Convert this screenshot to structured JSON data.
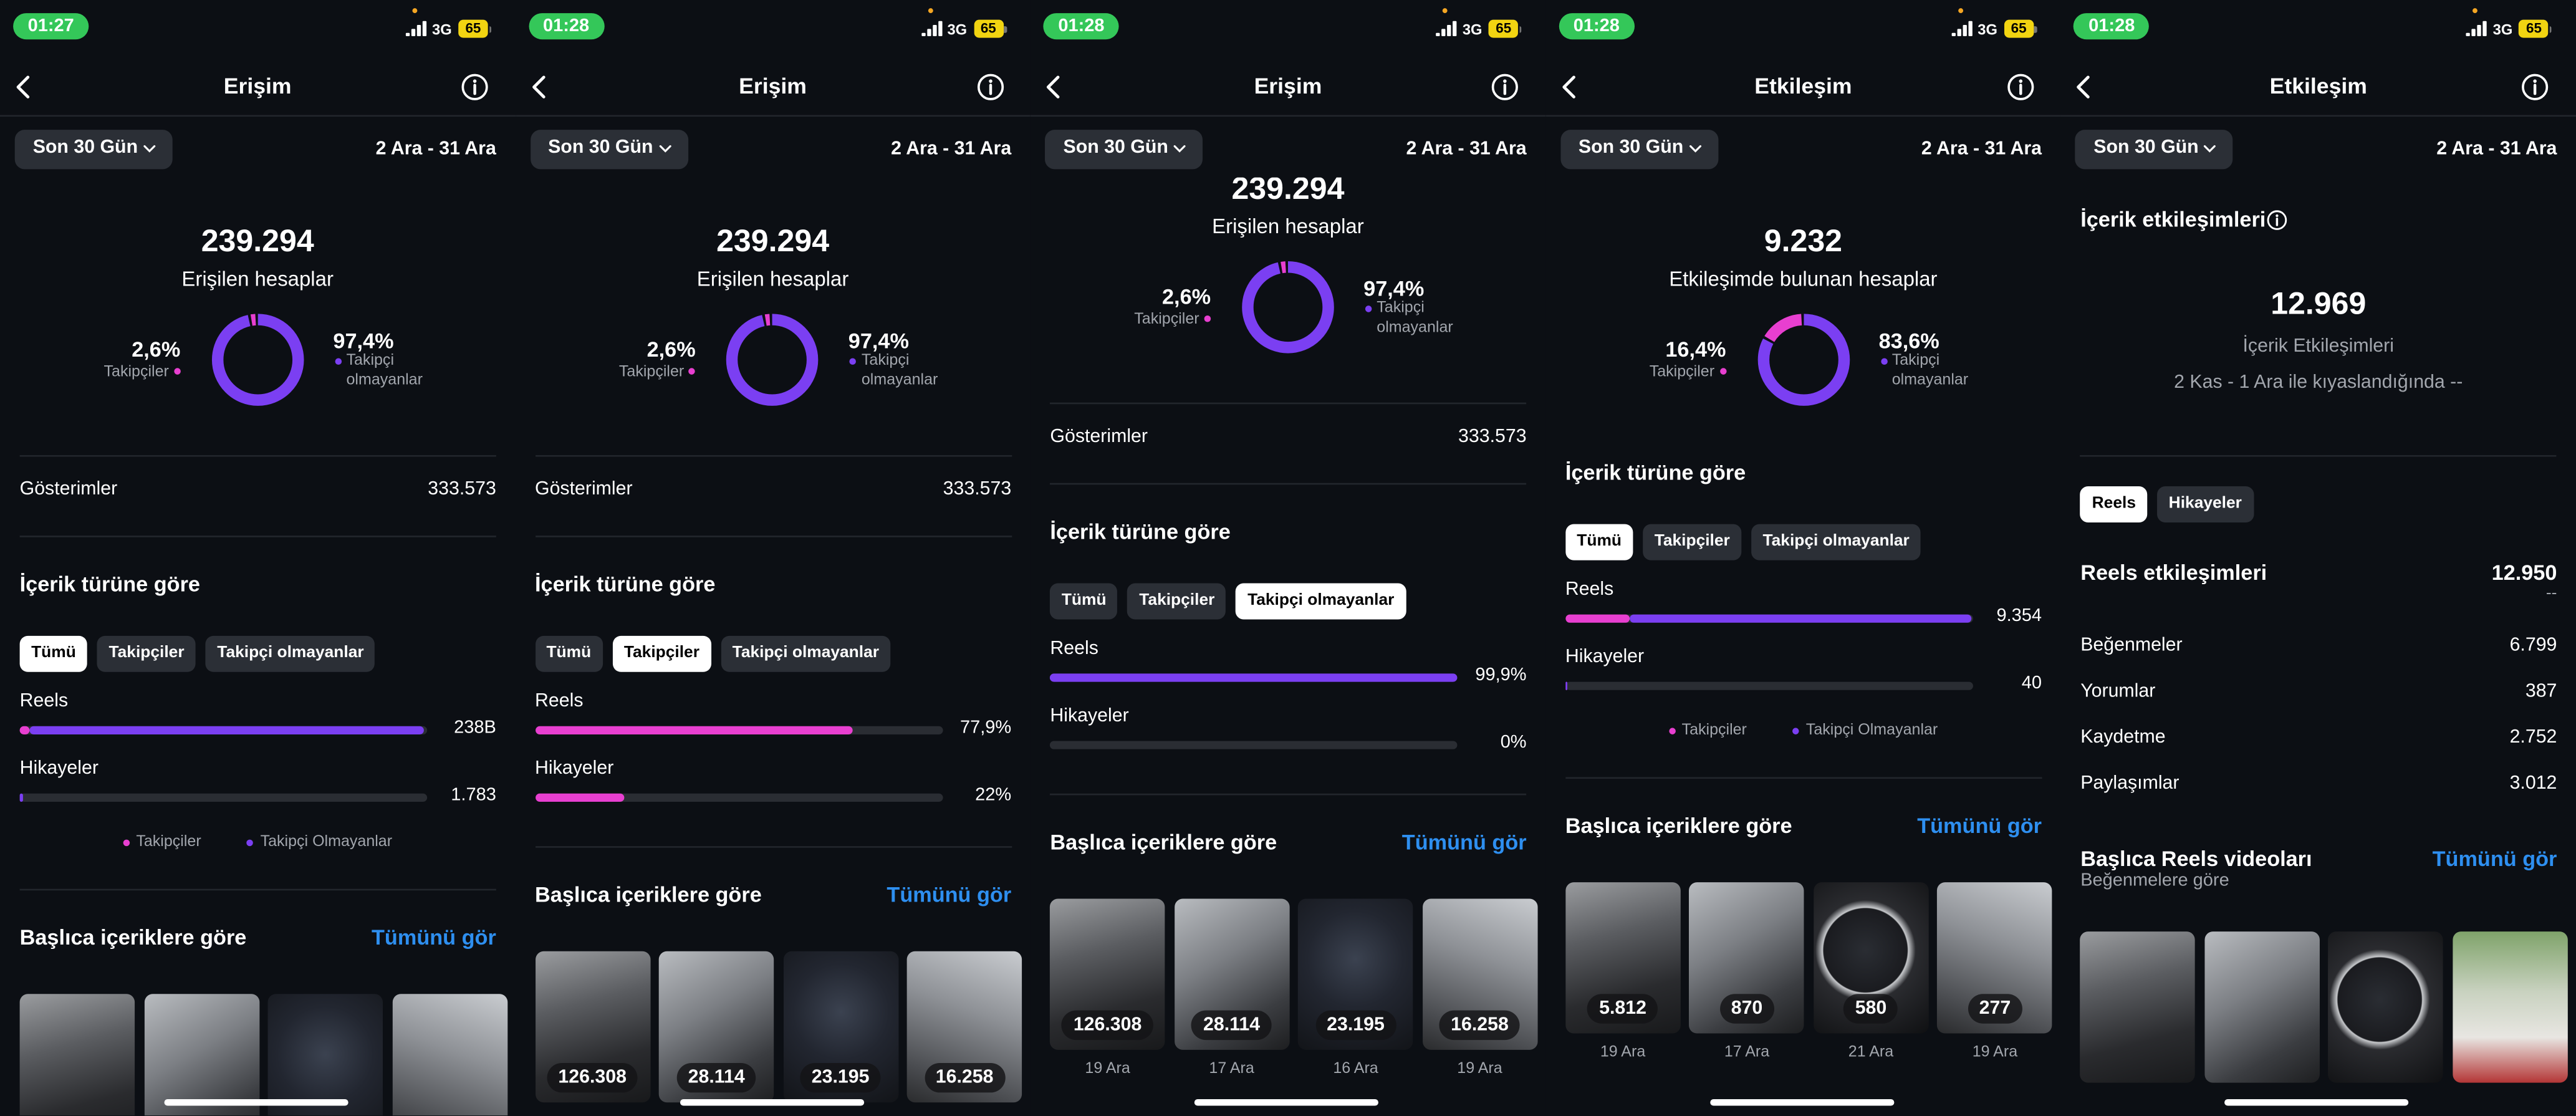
{
  "screens": [
    {
      "status": {
        "time": "01:27",
        "network": "3G",
        "battery": "65"
      },
      "header": {
        "title": "Erişim"
      },
      "filter": {
        "period": "Son 30 Gün",
        "range": "2 Ara - 31 Ara"
      },
      "blocks": [
        {
          "kind": "summary",
          "total": "239.294",
          "label": "Erişilen hesaplar",
          "donut": {
            "values": [
              2.6,
              97.4
            ],
            "value_labels": [
              "2,6%",
              "97,4%"
            ],
            "names": [
              "Takipçiler",
              "Takipçi olmayanlar"
            ],
            "colors": [
              "#e83fd0",
              "#7b3ff2"
            ]
          }
        },
        {
          "kind": "row",
          "label": "Gösterimler",
          "value": "333.573"
        },
        {
          "kind": "heading",
          "text": "İçerik türüne göre"
        },
        {
          "kind": "chips",
          "items": [
            "Tümü",
            "Takipçiler",
            "Takipçi olmayanlar"
          ],
          "selected": 0
        },
        {
          "kind": "bars",
          "categories": [
            "Reels",
            "Hikayeler"
          ],
          "series": [
            {
              "name": "Takipçiler",
              "color": "#e83fd0",
              "values": [
                6200,
                60
              ]
            },
            {
              "name": "Takipçi Olmayanlar",
              "color": "#7b3ff2",
              "values": [
                231800,
                1723
              ]
            }
          ],
          "value_labels": [
            "238B",
            "1.783"
          ],
          "xlim": [
            0,
            240000
          ]
        },
        {
          "kind": "heading",
          "text": "Başlıca içeriklere göre",
          "link": "Tümünü gör"
        },
        {
          "kind": "thumbs",
          "items": [
            {},
            {},
            {},
            {}
          ]
        }
      ]
    },
    {
      "status": {
        "time": "01:28",
        "network": "3G",
        "battery": "65"
      },
      "header": {
        "title": "Erişim"
      },
      "filter": {
        "period": "Son 30 Gün",
        "range": "2 Ara - 31 Ara"
      },
      "blocks": [
        {
          "kind": "summary",
          "total": "239.294",
          "label": "Erişilen hesaplar",
          "donut": {
            "values": [
              2.6,
              97.4
            ],
            "value_labels": [
              "2,6%",
              "97,4%"
            ],
            "names": [
              "Takipçiler",
              "Takipçi olmayanlar"
            ],
            "colors": [
              "#e83fd0",
              "#7b3ff2"
            ]
          }
        },
        {
          "kind": "row",
          "label": "Gösterimler",
          "value": "333.573"
        },
        {
          "kind": "heading",
          "text": "İçerik türüne göre"
        },
        {
          "kind": "chips",
          "items": [
            "Tümü",
            "Takipçiler",
            "Takipçi olmayanlar"
          ],
          "selected": 1
        },
        {
          "kind": "bars",
          "categories": [
            "Reels",
            "Hikayeler"
          ],
          "series": [
            {
              "color": "#e83fd0",
              "values": [
                77.9,
                22
              ]
            }
          ],
          "value_labels": [
            "77,9%",
            "22%"
          ],
          "xlim": [
            0,
            100
          ]
        },
        {
          "kind": "heading",
          "text": "Başlıca içeriklere göre",
          "link": "Tümünü gör"
        },
        {
          "kind": "thumbs",
          "items": [
            {
              "badge": "126.308"
            },
            {
              "badge": "28.114"
            },
            {
              "badge": "23.195"
            },
            {
              "badge": "16.258"
            }
          ]
        }
      ]
    },
    {
      "status": {
        "time": "01:28",
        "network": "3G",
        "battery": "65"
      },
      "header": {
        "title": "Erişim"
      },
      "filter": {
        "period": "Son 30 Gün",
        "range": "2 Ara - 31 Ara"
      },
      "blocks": [
        {
          "kind": "summary",
          "total": "239.294",
          "label": "Erişilen hesaplar",
          "donut": {
            "values": [
              2.6,
              97.4
            ],
            "value_labels": [
              "2,6%",
              "97,4%"
            ],
            "names": [
              "Takipçiler",
              "Takipçi olmayanlar"
            ],
            "colors": [
              "#e83fd0",
              "#7b3ff2"
            ]
          }
        },
        {
          "kind": "row",
          "label": "Gösterimler",
          "value": "333.573"
        },
        {
          "kind": "heading",
          "text": "İçerik türüne göre"
        },
        {
          "kind": "chips",
          "items": [
            "Tümü",
            "Takipçiler",
            "Takipçi olmayanlar"
          ],
          "selected": 2
        },
        {
          "kind": "bars",
          "categories": [
            "Reels",
            "Hikayeler"
          ],
          "series": [
            {
              "color": "#7b3ff2",
              "values": [
                99.9,
                0
              ]
            }
          ],
          "value_labels": [
            "99,9%",
            "0%"
          ],
          "xlim": [
            0,
            100
          ]
        },
        {
          "kind": "heading",
          "text": "Başlıca içeriklere göre",
          "link": "Tümünü gör"
        },
        {
          "kind": "thumbs",
          "items": [
            {
              "badge": "126.308",
              "date": "19 Ara"
            },
            {
              "badge": "28.114",
              "date": "17 Ara"
            },
            {
              "badge": "23.195",
              "date": "16 Ara"
            },
            {
              "badge": "16.258",
              "date": "19 Ara"
            }
          ]
        }
      ]
    },
    {
      "status": {
        "time": "01:28",
        "network": "3G",
        "battery": "65"
      },
      "header": {
        "title": "Etkileşim"
      },
      "filter": {
        "period": "Son 30 Gün",
        "range": "2 Ara - 31 Ara"
      },
      "blocks": [
        {
          "kind": "summary",
          "total": "9.232",
          "label": "Etkileşimde bulunan hesaplar",
          "donut": {
            "values": [
              16.4,
              83.6
            ],
            "value_labels": [
              "16,4%",
              "83,6%"
            ],
            "names": [
              "Takipçiler",
              "Takipçi olmayanlar"
            ],
            "colors": [
              "#e83fd0",
              "#7b3ff2"
            ]
          }
        },
        {
          "kind": "heading",
          "text": "İçerik türüne göre"
        },
        {
          "kind": "chips",
          "items": [
            "Tümü",
            "Takipçiler",
            "Takipçi olmayanlar"
          ],
          "selected": 0
        },
        {
          "kind": "bars",
          "categories": [
            "Reels",
            "Hikayeler"
          ],
          "series": [
            {
              "name": "Takipçiler",
              "color": "#e83fd0",
              "values": [
                1500,
                5
              ]
            },
            {
              "name": "Takipçi Olmayanlar",
              "color": "#7b3ff2",
              "values": [
                7854,
                35
              ]
            }
          ],
          "value_labels": [
            "9.354",
            "40"
          ],
          "xlim": [
            0,
            9400
          ]
        },
        {
          "kind": "heading",
          "text": "Başlıca içeriklere göre",
          "link": "Tümünü gör"
        },
        {
          "kind": "thumbs",
          "items": [
            {
              "badge": "5.812",
              "date": "19 Ara"
            },
            {
              "badge": "870",
              "date": "17 Ara"
            },
            {
              "badge": "580",
              "date": "21 Ara"
            },
            {
              "badge": "277",
              "date": "19 Ara"
            }
          ]
        }
      ]
    },
    {
      "status": {
        "time": "01:28",
        "network": "3G",
        "battery": "65"
      },
      "header": {
        "title": "Etkileşim"
      },
      "filter": {
        "period": "Son 30 Gün",
        "range": "2 Ara - 31 Ara"
      },
      "blocks": [
        {
          "kind": "total",
          "title": "İçerik etkileşimleri",
          "value": "12.969",
          "label": "İçerik Etkileşimleri",
          "note": "2 Kas - 1 Ara ile kıyaslandığında --"
        },
        {
          "kind": "chips",
          "items": [
            "Reels",
            "Hikayeler"
          ],
          "selected": 0
        },
        {
          "kind": "metric",
          "label": "Reels etkileşimleri",
          "value": "12.950",
          "change": "--"
        },
        {
          "kind": "list",
          "rows": [
            [
              "Beğenmeler",
              "6.799"
            ],
            [
              "Yorumlar",
              "387"
            ],
            [
              "Kaydetme",
              "2.752"
            ],
            [
              "Paylaşımlar",
              "3.012"
            ]
          ]
        },
        {
          "kind": "heading",
          "text": "Başlıca Reels videoları",
          "link": "Tümünü gör",
          "subtitle": "Beğenmelere göre"
        },
        {
          "kind": "thumbs",
          "items": [
            {},
            {},
            {},
            {}
          ]
        }
      ]
    }
  ]
}
